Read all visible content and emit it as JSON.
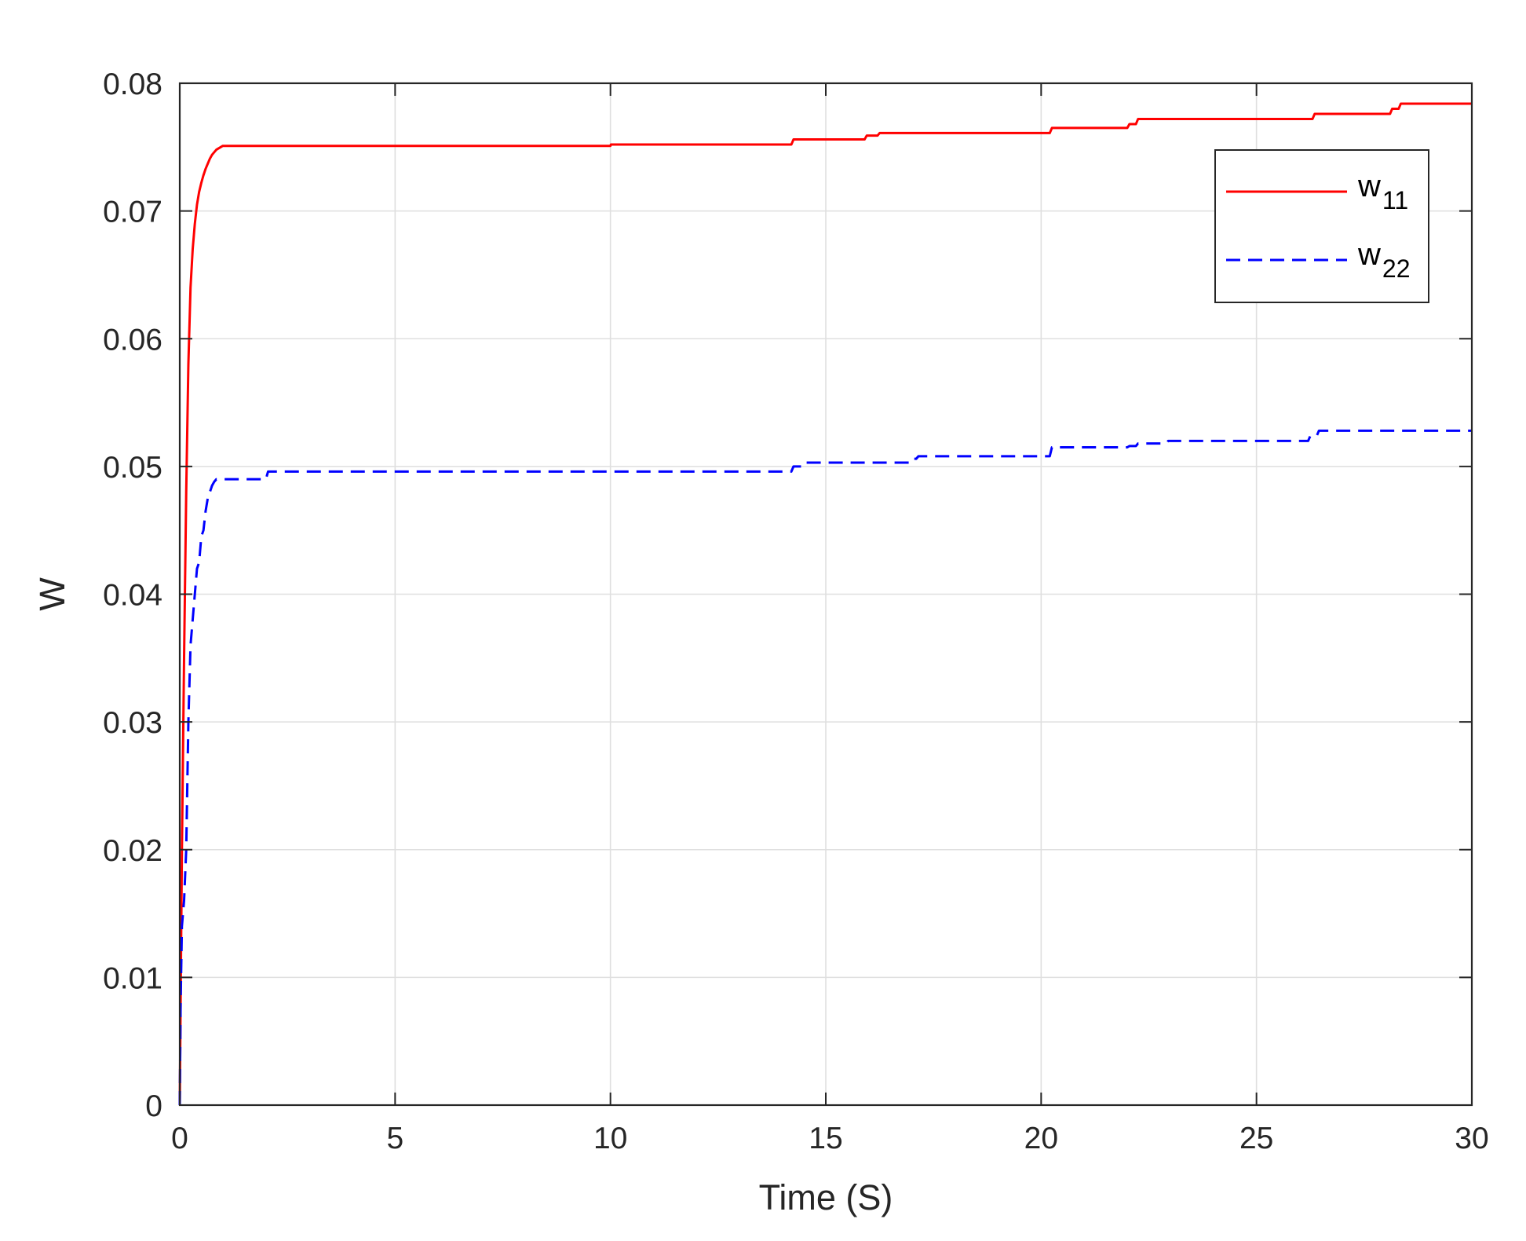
{
  "chart_data": {
    "type": "line",
    "title": "",
    "xlabel": "Time (S)",
    "ylabel": "W",
    "xlim": [
      0,
      30
    ],
    "ylim": [
      0,
      0.08
    ],
    "xticks": [
      0,
      5,
      10,
      15,
      20,
      25,
      30
    ],
    "xtick_labels": [
      "0",
      "5",
      "10",
      "15",
      "20",
      "25",
      "30"
    ],
    "yticks": [
      0,
      0.01,
      0.02,
      0.03,
      0.04,
      0.05,
      0.06,
      0.07,
      0.08
    ],
    "ytick_labels": [
      "0",
      "0.01",
      "0.02",
      "0.03",
      "0.04",
      "0.05",
      "0.06",
      "0.07",
      "0.08"
    ],
    "grid": true,
    "legend_position": "top-right",
    "series": [
      {
        "name": "w11",
        "name_base": "w",
        "name_sub": "11",
        "color": "#ff0000",
        "line_style": "solid",
        "x": [
          0,
          0.05,
          0.1,
          0.15,
          0.2,
          0.25,
          0.3,
          0.35,
          0.4,
          0.45,
          0.5,
          0.55,
          0.6,
          0.65,
          0.7,
          0.75,
          0.8,
          0.85,
          0.9,
          0.95,
          1.0,
          1.1,
          1.2,
          10.0,
          10.01,
          14.2,
          14.25,
          15.9,
          15.95,
          16.2,
          16.25,
          20.2,
          20.25,
          22.0,
          22.05,
          22.2,
          22.25,
          26.3,
          26.35,
          28.1,
          28.15,
          28.3,
          28.35,
          30.0
        ],
        "y": [
          0,
          0.02,
          0.035,
          0.048,
          0.058,
          0.064,
          0.067,
          0.069,
          0.0705,
          0.0715,
          0.0722,
          0.0728,
          0.0733,
          0.0737,
          0.0741,
          0.0744,
          0.0746,
          0.0748,
          0.0749,
          0.075,
          0.0751,
          0.0751,
          0.0751,
          0.0751,
          0.0752,
          0.0752,
          0.0756,
          0.0756,
          0.0759,
          0.0759,
          0.0761,
          0.0761,
          0.0765,
          0.0765,
          0.0768,
          0.0768,
          0.0772,
          0.0772,
          0.0776,
          0.0776,
          0.078,
          0.078,
          0.0784,
          0.0784
        ]
      },
      {
        "name": "w22",
        "name_base": "w",
        "name_sub": "22",
        "color": "#0000ff",
        "line_style": "dashed",
        "x": [
          0,
          0.02,
          0.05,
          0.1,
          0.15,
          0.2,
          0.25,
          0.3,
          0.35,
          0.4,
          0.45,
          0.5,
          0.55,
          0.6,
          0.65,
          0.7,
          0.75,
          0.8,
          0.85,
          0.9,
          1.0,
          2.0,
          2.05,
          14.2,
          14.25,
          14.45,
          14.5,
          17.0,
          17.05,
          17.1,
          17.15,
          20.2,
          20.25,
          22.0,
          22.05,
          22.2,
          22.25,
          22.9,
          22.95,
          26.2,
          26.25,
          26.4,
          26.45,
          30.0
        ],
        "y": [
          0,
          0.008,
          0.014,
          0.016,
          0.02,
          0.03,
          0.036,
          0.038,
          0.04,
          0.042,
          0.0425,
          0.0445,
          0.045,
          0.0465,
          0.0475,
          0.048,
          0.0485,
          0.0488,
          0.049,
          0.049,
          0.049,
          0.049,
          0.0496,
          0.0496,
          0.05,
          0.05,
          0.0503,
          0.0503,
          0.0506,
          0.0506,
          0.0508,
          0.0508,
          0.0515,
          0.0515,
          0.0516,
          0.0516,
          0.0518,
          0.0518,
          0.052,
          0.052,
          0.0524,
          0.0524,
          0.0528,
          0.0528
        ]
      }
    ]
  }
}
